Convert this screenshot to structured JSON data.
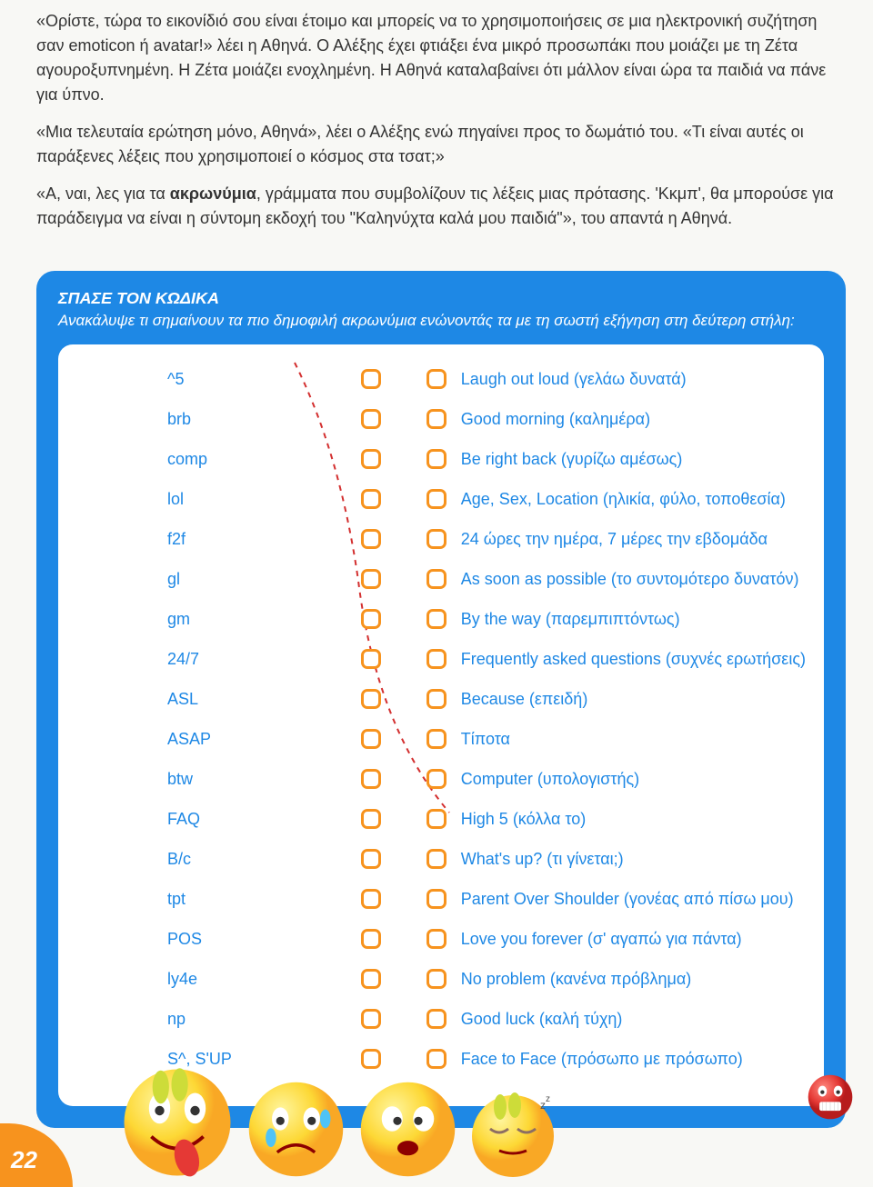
{
  "story": {
    "p1": "«Ορίστε, τώρα το εικονίδιό σου είναι έτοιμο και μπορείς να το χρησιμοποιήσεις σε μια ηλεκτρονική συζήτηση σαν emoticon ή avatar!» λέει η Αθηνά. Ο Αλέξης έχει φτιάξει ένα μικρό προσωπάκι που μοιάζει με τη Ζέτα αγουροξυπνημένη. Η Ζέτα μοιάζει ενοχλημένη. Η Αθηνά καταλαβαίνει ότι μάλλον είναι ώρα τα παιδιά να πάνε για ύπνο.",
    "p2": "«Μια τελευταία ερώτηση μόνο, Αθηνά», λέει ο Αλέξης ενώ πηγαίνει προς το δωμάτιό του. «Τι είναι αυτές οι παράξενες λέξεις που χρησιμοποιεί ο κόσμος στα τσατ;»",
    "p3_pre": "«Α, ναι, λες για τα ",
    "p3_bold": "ακρωνύμια",
    "p3_post": ", γράμματα που συμβολίζουν τις λέξεις μιας πρότασης. 'Κκμπ', θα μπορούσε για παράδειγμα να είναι η σύντομη εκδοχή του \"Καληνύχτα καλά μου παιδιά\"», του απαντά η Αθηνά."
  },
  "panel": {
    "title": "ΣΠΑΣΕ ΤΟΝ ΚΩΔΙΚΑ",
    "subtitle": "Ανακάλυψε τι σημαίνουν τα πιο δημοφιλή ακρωνύμια ενώνοντάς τα με τη σωστή εξήγηση στη δεύτερη στήλη:"
  },
  "acronyms": [
    "^5",
    "brb",
    "comp",
    "lol",
    "f2f",
    "gl",
    "gm",
    "24/7",
    "ASL",
    "ASAP",
    "btw",
    "FAQ",
    "B/c",
    "tpt",
    "POS",
    "ly4e",
    "np",
    "S^, S'UP"
  ],
  "explanations": [
    "Laugh out loud (γελάω δυνατά)",
    "Good morning (καλημέρα)",
    "Be right back (γυρίζω αμέσως)",
    "Age, Sex, Location (ηλικία, φύλο, τοποθεσία)",
    "24 ώρες την ημέρα, 7 μέρες την εβδομάδα",
    "As soon as possible (το συντομότερο δυνατόν)",
    "By the way (παρεμπιπτόντως)",
    "Frequently asked questions (συχνές ερωτήσεις)",
    "Because (επειδή)",
    "Τίποτα",
    "Computer (υπολογιστής)",
    "High 5 (κόλλα το)",
    "What's up? (τι γίνεται;)",
    "Parent Over Shoulder (γονέας από πίσω μου)",
    "Love you forever (σ' αγαπώ για πάντα)",
    "No problem (κανένα πρόβλημα)",
    "Good luck (καλή τύχη)",
    "Face to Face (πρόσωπο με πρόσωπο)"
  ],
  "page_number": "22",
  "colors": {
    "panel_bg": "#1e88e5",
    "card_bg": "#ffffff",
    "checkbox_border": "#f7931e",
    "text_blue": "#1e88e5",
    "page_badge": "#f7931e",
    "dashed_line": "#d32f2f"
  }
}
